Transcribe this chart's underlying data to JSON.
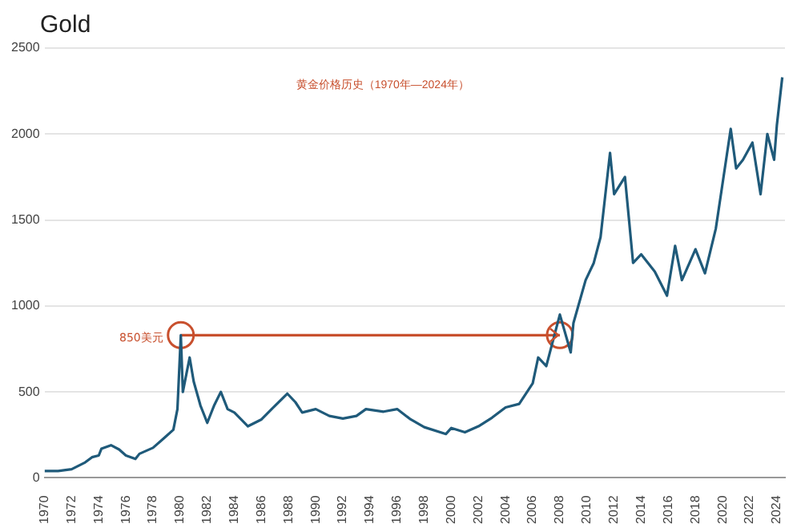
{
  "chart_data": {
    "type": "line",
    "title": "Gold",
    "subtitle": "黄金价格历史（1970年—2024年）",
    "x": [
      1970,
      1971,
      1972,
      1972.5,
      1973,
      1973.5,
      1974,
      1974.2,
      1974.9,
      1975.5,
      1976,
      1976.7,
      1977,
      1978,
      1978.8,
      1979.5,
      1979.8,
      1980.05,
      1980.2,
      1980.7,
      1981,
      1981.5,
      1982,
      1982.5,
      1983,
      1983.5,
      1984,
      1985,
      1986,
      1987,
      1987.9,
      1988.5,
      1989,
      1990,
      1991,
      1992,
      1993,
      1993.7,
      1995,
      1996,
      1997,
      1998,
      1999.6,
      2000,
      2001,
      2002,
      2003,
      2004,
      2005,
      2006,
      2006.4,
      2007,
      2008,
      2008.8,
      2009,
      2009.9,
      2010.5,
      2011,
      2011.7,
      2012,
      2012.8,
      2013.4,
      2014,
      2015,
      2015.9,
      2016.5,
      2017,
      2018,
      2018.7,
      2019.5,
      2020.6,
      2021,
      2021.5,
      2022.2,
      2022.8,
      2023.3,
      2023.8,
      2024,
      2024.4
    ],
    "series": [
      {
        "color": "#1f5a7a",
        "values": [
          40,
          40,
          50,
          70,
          90,
          120,
          130,
          170,
          190,
          165,
          130,
          110,
          140,
          175,
          230,
          280,
          400,
          830,
          500,
          700,
          560,
          420,
          320,
          420,
          500,
          400,
          380,
          300,
          340,
          420,
          490,
          440,
          380,
          400,
          360,
          345,
          360,
          400,
          385,
          400,
          340,
          295,
          255,
          290,
          265,
          300,
          350,
          410,
          430,
          550,
          700,
          650,
          950,
          730,
          900,
          1150,
          1250,
          1400,
          1890,
          1650,
          1750,
          1250,
          1300,
          1200,
          1060,
          1350,
          1150,
          1330,
          1190,
          1450,
          2030,
          1800,
          1850,
          1950,
          1650,
          2000,
          1850,
          2050,
          2330
        ]
      },
      {
        "type": "line",
        "color": "#c8502e",
        "marker": "circle",
        "x": [
          1980.05,
          2008
        ],
        "values": [
          830,
          830
        ]
      }
    ],
    "xlim": [
      1970,
      2024.6
    ],
    "xticks": [
      1970,
      1972,
      1974,
      1976,
      1978,
      1980,
      1982,
      1984,
      1986,
      1988,
      1990,
      1992,
      1994,
      1996,
      1998,
      2000,
      2002,
      2004,
      2006,
      2008,
      2010,
      2012,
      2014,
      2016,
      2018,
      2020,
      2022,
      2024
    ],
    "ylim": [
      0,
      2500
    ],
    "yticks": [
      0,
      500,
      1000,
      1500,
      2000,
      2500
    ],
    "grid": "y",
    "legend": false,
    "marker": "none",
    "line_style": "solid",
    "annotations": [
      {
        "text": "850美元",
        "x": 1980.05,
        "y": 830
      }
    ]
  }
}
